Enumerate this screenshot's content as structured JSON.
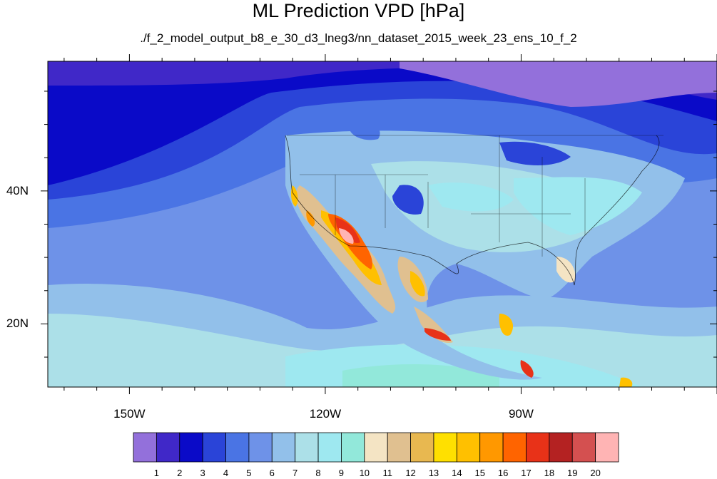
{
  "title": "ML Prediction VPD [hPa]",
  "subtitle": "./f_2_model_output_b8_e_30_d3_lneg3/nn_dataset_2015_week_23_ens_10_f_2",
  "axes": {
    "lon_range": [
      -162.5,
      -60
    ],
    "lat_range": [
      10.5,
      59.5
    ],
    "lon_labels": [
      "150W",
      "120W",
      "90W"
    ],
    "lon_label_values": [
      -150,
      -120,
      -90
    ],
    "lat_labels": [
      "40N",
      "20N"
    ],
    "lat_label_values": [
      40,
      20
    ]
  },
  "colorbar": {
    "levels": [
      "1",
      "2",
      "3",
      "4",
      "5",
      "6",
      "7",
      "8",
      "9",
      "10",
      "11",
      "12",
      "13",
      "14",
      "15",
      "16",
      "17",
      "18",
      "19",
      "20"
    ],
    "colors": [
      "#9370db",
      "#4028c8",
      "#0a0ac8",
      "#2a44d8",
      "#4a74e4",
      "#6e92e8",
      "#92c0ea",
      "#ace0e8",
      "#9ee8f0",
      "#92e8da",
      "#f4e4c4",
      "#e0c090",
      "#e8b850",
      "#ffe000",
      "#ffc000",
      "#ff9800",
      "#ff6400",
      "#e83218",
      "#b42222",
      "#d45050",
      "#ffb4b4"
    ]
  }
}
